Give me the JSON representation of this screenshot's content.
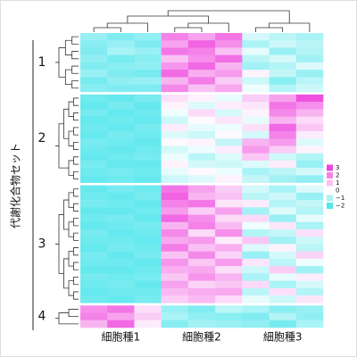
{
  "chart_data": {
    "type": "heatmap",
    "y_label": "代謝化合物セット",
    "categories": [
      "細胞種1",
      "細胞種2",
      "細胞種3"
    ],
    "clim": [
      -2,
      3
    ],
    "low_color": "#55e6ec",
    "mid_color": "#ffffff",
    "high_color": "#ee44dd",
    "colorbar_ticks": [
      3,
      2,
      1,
      0,
      {
        "value": -1,
        "label": "−1"
      },
      {
        "value": -2,
        "label": "−2"
      }
    ],
    "clusters": [
      {
        "name": "1",
        "values": [
          [
            -1.2,
            -1.5,
            -1.3,
            2.0,
            1.5,
            2.2,
            -0.5,
            -0.8,
            -1.0
          ],
          [
            -1.4,
            -1.2,
            -1.5,
            1.5,
            2.5,
            1.8,
            -1.0,
            -0.6,
            -0.8
          ],
          [
            -1.5,
            -1.0,
            -1.2,
            2.2,
            2.0,
            1.0,
            -0.3,
            -1.2,
            -0.9
          ],
          [
            -1.3,
            -1.6,
            -1.4,
            1.0,
            1.8,
            2.3,
            -0.8,
            -0.5,
            -1.1
          ],
          [
            -1.5,
            -1.4,
            -1.3,
            1.7,
            2.4,
            1.2,
            -1.1,
            -0.9,
            -0.4
          ],
          [
            -1.2,
            -1.5,
            -1.6,
            2.4,
            1.3,
            1.6,
            0.2,
            -0.7,
            -1.2
          ],
          [
            -1.6,
            -1.3,
            -1.2,
            1.2,
            2.1,
            0.8,
            -0.6,
            -1.4,
            -0.8
          ],
          [
            -1.4,
            -1.5,
            -1.5,
            1.9,
            1.0,
            1.4,
            -0.2,
            -0.9,
            -0.6
          ]
        ]
      },
      {
        "name": "2",
        "values": [
          [
            -1.7,
            -1.8,
            -1.6,
            0.5,
            0.2,
            -0.3,
            0.8,
            1.5,
            2.8
          ],
          [
            -1.8,
            -1.6,
            -1.8,
            0.2,
            -0.4,
            0.3,
            0.4,
            2.2,
            1.8
          ],
          [
            -1.6,
            -1.8,
            -1.7,
            -0.2,
            0.6,
            -0.5,
            0.2,
            1.9,
            1.2
          ],
          [
            -1.8,
            -1.7,
            -1.8,
            -0.6,
            0.1,
            0.4,
            -0.3,
            1.2,
            0.6
          ],
          [
            -1.7,
            -1.8,
            -1.6,
            0.3,
            -0.3,
            -0.2,
            0.5,
            2.4,
            0.9
          ],
          [
            -1.8,
            -1.6,
            -1.7,
            -0.4,
            -0.6,
            0.1,
            -0.5,
            2.0,
            0.3
          ],
          [
            -1.6,
            -1.7,
            -1.8,
            0.1,
            0.2,
            -0.7,
            1.2,
            1.6,
            -0.4
          ],
          [
            -1.7,
            -1.8,
            -1.7,
            -0.5,
            -0.2,
            0.3,
            1.6,
            0.8,
            0.2
          ],
          [
            -1.8,
            -1.7,
            -1.6,
            -0.2,
            -0.8,
            -0.4,
            0.9,
            -0.6,
            -0.9
          ],
          [
            -1.6,
            -1.8,
            -1.8,
            0.2,
            -0.5,
            -0.6,
            -0.4,
            0.3,
            -1.2
          ],
          [
            -1.7,
            -1.6,
            -1.7,
            -0.3,
            0.1,
            -0.2,
            -1.0,
            -0.8,
            -0.5
          ],
          [
            -1.8,
            -1.7,
            -1.8,
            -0.6,
            -0.4,
            0.2,
            -0.7,
            -1.1,
            -1.3
          ]
        ]
      },
      {
        "name": "3",
        "values": [
          [
            -1.8,
            -1.6,
            -1.7,
            2.2,
            1.5,
            0.8,
            -0.5,
            -1.0,
            -0.4
          ],
          [
            -1.7,
            -1.8,
            -1.6,
            2.5,
            1.2,
            1.0,
            -0.8,
            -0.6,
            -1.2
          ],
          [
            -1.6,
            -1.7,
            -1.8,
            2.0,
            2.2,
            0.4,
            0.3,
            -0.9,
            -0.7
          ],
          [
            -1.8,
            -1.8,
            -1.7,
            1.6,
            0.8,
            1.5,
            -1.1,
            -0.4,
            -0.9
          ],
          [
            -1.7,
            -1.6,
            -1.8,
            2.4,
            1.8,
            0.6,
            0.6,
            -1.2,
            -0.3
          ],
          [
            -1.8,
            -1.7,
            -1.6,
            1.2,
            2.0,
            1.1,
            -0.2,
            0.4,
            -1.0
          ],
          [
            -1.6,
            -1.8,
            -1.7,
            1.9,
            0.6,
            1.8,
            -0.9,
            -0.7,
            0.5
          ],
          [
            -1.7,
            -1.7,
            -1.8,
            1.4,
            1.6,
            0.3,
            0.9,
            -1.1,
            -0.6
          ],
          [
            -1.8,
            -1.6,
            -1.7,
            2.1,
            1.0,
            1.3,
            -0.4,
            0.2,
            -0.8
          ],
          [
            -1.6,
            -1.8,
            -1.6,
            1.0,
            1.9,
            0.7,
            -1.2,
            -0.5,
            0.7
          ],
          [
            -1.7,
            -1.7,
            -1.8,
            1.7,
            0.9,
            1.6,
            0.4,
            -0.8,
            -0.2
          ],
          [
            -1.8,
            -1.8,
            -1.7,
            1.3,
            1.4,
            0.5,
            -0.6,
            0.8,
            -1.1
          ],
          [
            -1.6,
            -1.7,
            -1.6,
            0.9,
            1.7,
            1.2,
            -1.0,
            -0.3,
            0.3
          ],
          [
            -1.7,
            -1.6,
            -1.8,
            1.5,
            0.7,
            0.9,
            0.6,
            -1.0,
            -0.5
          ],
          [
            -1.8,
            -1.7,
            -1.7,
            1.1,
            1.3,
            1.4,
            -0.8,
            0.5,
            -0.9
          ],
          [
            -1.7,
            -1.8,
            -1.6,
            0.8,
            1.1,
            0.6,
            -0.3,
            -0.6,
            0.4
          ]
        ]
      },
      {
        "name": "4",
        "values": [
          [
            1.8,
            2.2,
            0.5,
            -1.2,
            -1.5,
            -0.8,
            -1.0,
            -1.4,
            -1.2
          ],
          [
            2.0,
            1.5,
            0.8,
            -1.0,
            -1.3,
            -1.4,
            -1.5,
            -0.9,
            -1.3
          ],
          [
            1.2,
            2.4,
            0.3,
            -1.4,
            -1.1,
            -1.2,
            -1.3,
            -1.6,
            -1.0
          ]
        ]
      }
    ]
  }
}
